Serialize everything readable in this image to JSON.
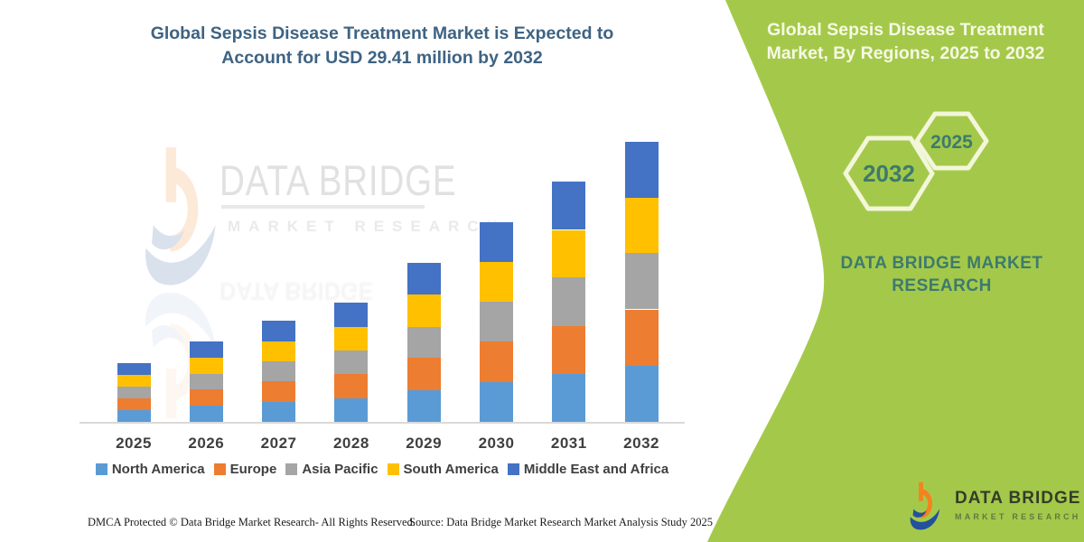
{
  "chart_title": {
    "line1": "Global Sepsis Disease Treatment Market is Expected to",
    "line2": "Account for USD 29.41 million by 2032"
  },
  "chart_data": {
    "type": "bar",
    "stacked": true,
    "title": "Global Sepsis Disease Treatment Market is Expected to Account for USD 29.41 million by 2032",
    "unit": "USD million",
    "categories": [
      "2025",
      "2026",
      "2027",
      "2028",
      "2029",
      "2030",
      "2031",
      "2032"
    ],
    "series": [
      {
        "name": "North America",
        "color": "#5b9bd5",
        "values": [
          1.25,
          1.7,
          2.1,
          2.5,
          3.35,
          4.2,
          5.05,
          5.91
        ]
      },
      {
        "name": "Europe",
        "color": "#ed7d31",
        "values": [
          1.25,
          1.7,
          2.15,
          2.5,
          3.35,
          4.2,
          5.05,
          5.9
        ]
      },
      {
        "name": "Asia Pacific",
        "color": "#a5a5a5",
        "values": [
          1.2,
          1.65,
          2.1,
          2.5,
          3.3,
          4.2,
          5.05,
          5.9
        ]
      },
      {
        "name": "South America",
        "color": "#ffc000",
        "values": [
          1.25,
          1.65,
          2.1,
          2.5,
          3.35,
          4.15,
          5.0,
          5.85
        ]
      },
      {
        "name": "Middle East and Africa",
        "color": "#4472c4",
        "values": [
          1.25,
          1.7,
          2.15,
          2.5,
          3.35,
          4.2,
          5.05,
          5.85
        ]
      }
    ],
    "totals": [
      6.2,
      8.4,
      10.6,
      12.5,
      16.7,
      21.0,
      25.2,
      29.41
    ],
    "ylim": [
      0,
      31
    ],
    "xlabel": "",
    "ylabel": "",
    "grid": false,
    "legend_position": "bottom",
    "highlight_value": "USD 29.41 million by 2032"
  },
  "watermark": {
    "title": "DATA BRIDGE",
    "subtitle": "MARKET RESEARCH"
  },
  "side_panel": {
    "title_line1": "Global Sepsis Disease Treatment",
    "title_line2": "Market, By Regions, 2025 to 2032",
    "hexagons": {
      "large_label": "2032",
      "small_label": "2025"
    },
    "brand_line1": "DATA BRIDGE MARKET",
    "brand_line2": "RESEARCH"
  },
  "logo": {
    "title": "DATA BRIDGE",
    "subtitle": "MARKET RESEARCH"
  },
  "footer": {
    "dmca": "DMCA Protected © Data Bridge Market Research- All Rights Reserved.",
    "source": "Source: Data Bridge Market Research Market Analysis Study 2025"
  },
  "colors": {
    "title": "#3e6383",
    "axis": "#d9d9d9",
    "labels": "#3f3f3f",
    "panel_green": "#a4c94a",
    "panel_text": "#f6f9e4",
    "teal": "#3d7a6e",
    "hex_outline": "#f3f6da",
    "logo_orange": "#f58220",
    "logo_blue": "#24519c",
    "logo_text": "#333d28",
    "logo_sub": "#5d7a3e"
  }
}
